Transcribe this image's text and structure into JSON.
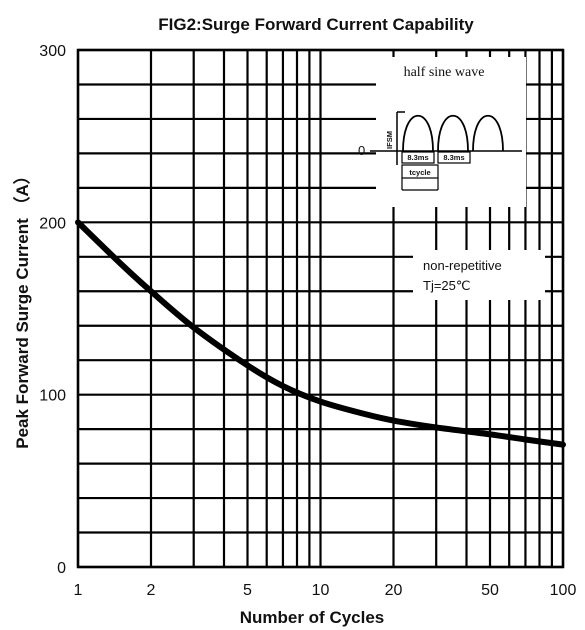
{
  "chart_data": {
    "type": "line",
    "title": "FIG2:Surge Forward Current Capability",
    "xlabel": "Number of Cycles",
    "ylabel": "Peak Forward Surge Current （A）",
    "x_scale": "log",
    "xlim": [
      1,
      100
    ],
    "ylim": [
      0,
      300
    ],
    "x_ticks": [
      "1",
      "2",
      "5",
      "10",
      "20",
      "50",
      "100"
    ],
    "y_ticks": [
      "0",
      "100",
      "200",
      "300"
    ],
    "grid": true,
    "series": [
      {
        "x": [
          1,
          1.5,
          2,
          3,
          5,
          7,
          10,
          15,
          20,
          30,
          50,
          70,
          100
        ],
        "y": [
          200,
          176,
          160,
          139,
          117,
          105,
          96,
          89,
          85,
          81,
          77,
          74,
          71
        ]
      }
    ],
    "annotations": {
      "condition_line1": "non-repetitive",
      "condition_line2": "Tj=25℃"
    },
    "inset": {
      "title": "half sine wave",
      "ylabel": "IFSM",
      "zero_label": "0",
      "pulse1": "8.3ms",
      "pulse2": "8.3ms",
      "period": "tcycle"
    }
  }
}
